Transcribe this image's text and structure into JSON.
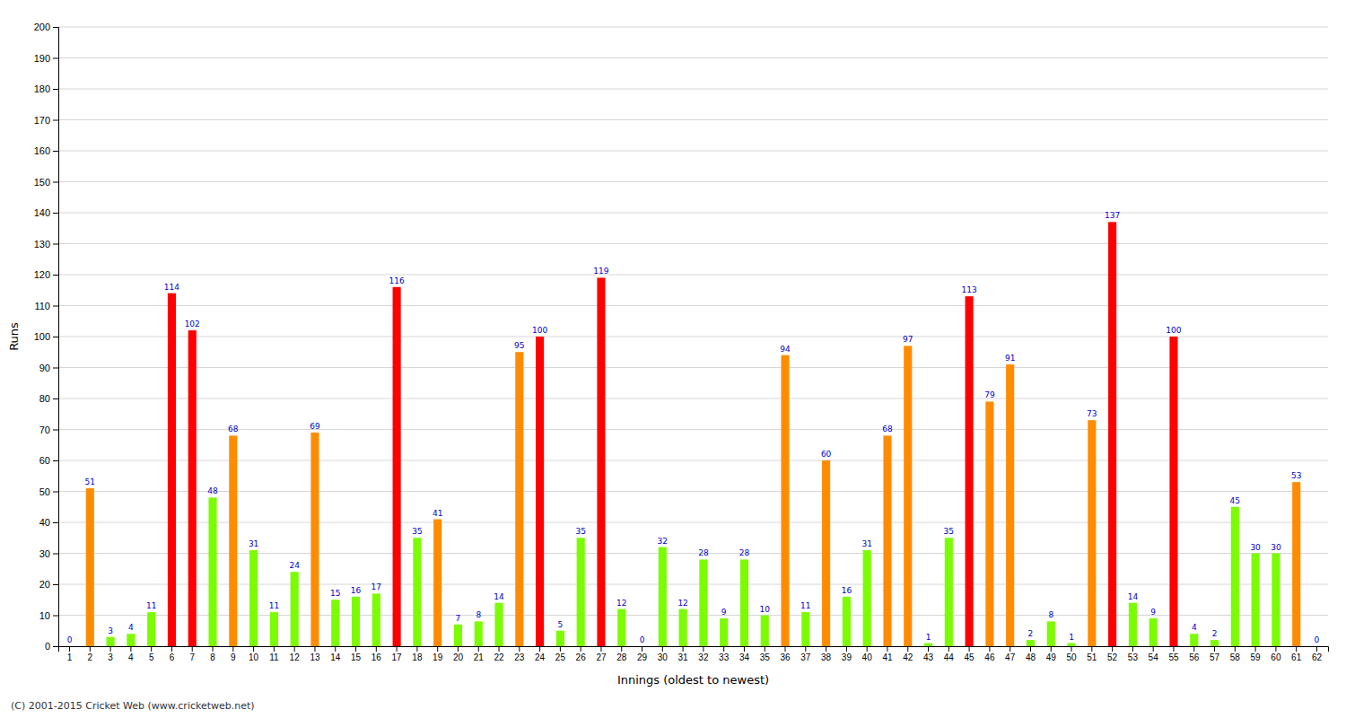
{
  "chart_data": {
    "type": "bar",
    "categories": [
      "1",
      "2",
      "3",
      "4",
      "5",
      "6",
      "7",
      "8",
      "9",
      "10",
      "11",
      "12",
      "13",
      "14",
      "15",
      "16",
      "17",
      "18",
      "19",
      "20",
      "21",
      "22",
      "23",
      "24",
      "25",
      "26",
      "27",
      "28",
      "29",
      "30",
      "31",
      "32",
      "33",
      "34",
      "35",
      "36",
      "37",
      "38",
      "39",
      "40",
      "41",
      "42",
      "43",
      "44",
      "45",
      "46",
      "47",
      "48",
      "49",
      "50",
      "51",
      "52",
      "53",
      "54",
      "55",
      "56",
      "57",
      "58",
      "59",
      "60",
      "61",
      "62"
    ],
    "values": [
      0,
      51,
      3,
      4,
      11,
      114,
      102,
      48,
      68,
      31,
      11,
      24,
      69,
      15,
      16,
      17,
      116,
      35,
      41,
      7,
      8,
      14,
      95,
      100,
      5,
      35,
      119,
      12,
      0,
      32,
      12,
      28,
      9,
      28,
      10,
      94,
      11,
      60,
      16,
      31,
      68,
      97,
      1,
      35,
      113,
      79,
      91,
      2,
      8,
      1,
      73,
      137,
      14,
      9,
      100,
      4,
      2,
      45,
      30,
      30,
      53,
      0
    ],
    "colors": [
      "#ff8c00",
      "#ff8c00",
      "#7cfc00",
      "#7cfc00",
      "#7cfc00",
      "#ff0000",
      "#ff0000",
      "#7cfc00",
      "#ff8c00",
      "#7cfc00",
      "#7cfc00",
      "#7cfc00",
      "#ff8c00",
      "#7cfc00",
      "#7cfc00",
      "#7cfc00",
      "#ff0000",
      "#7cfc00",
      "#ff8c00",
      "#7cfc00",
      "#7cfc00",
      "#7cfc00",
      "#ff8c00",
      "#ff0000",
      "#7cfc00",
      "#7cfc00",
      "#ff0000",
      "#7cfc00",
      "#7cfc00",
      "#7cfc00",
      "#7cfc00",
      "#7cfc00",
      "#7cfc00",
      "#7cfc00",
      "#7cfc00",
      "#ff8c00",
      "#7cfc00",
      "#ff8c00",
      "#7cfc00",
      "#7cfc00",
      "#ff8c00",
      "#ff8c00",
      "#7cfc00",
      "#7cfc00",
      "#ff0000",
      "#ff8c00",
      "#ff8c00",
      "#7cfc00",
      "#7cfc00",
      "#7cfc00",
      "#ff8c00",
      "#ff0000",
      "#7cfc00",
      "#7cfc00",
      "#ff0000",
      "#7cfc00",
      "#7cfc00",
      "#7cfc00",
      "#7cfc00",
      "#7cfc00",
      "#ff8c00",
      "#7cfc00"
    ],
    "xlabel": "Innings (oldest to newest)",
    "ylabel": "Runs",
    "ylim": [
      0,
      200
    ],
    "yticks": [
      0,
      10,
      20,
      30,
      40,
      50,
      60,
      70,
      80,
      90,
      100,
      110,
      120,
      130,
      140,
      150,
      160,
      170,
      180,
      190,
      200
    ],
    "grid": true,
    "data_labels": true,
    "annotations": [
      "(C) 2001-2015 Cricket Web (www.cricketweb.net)"
    ]
  }
}
